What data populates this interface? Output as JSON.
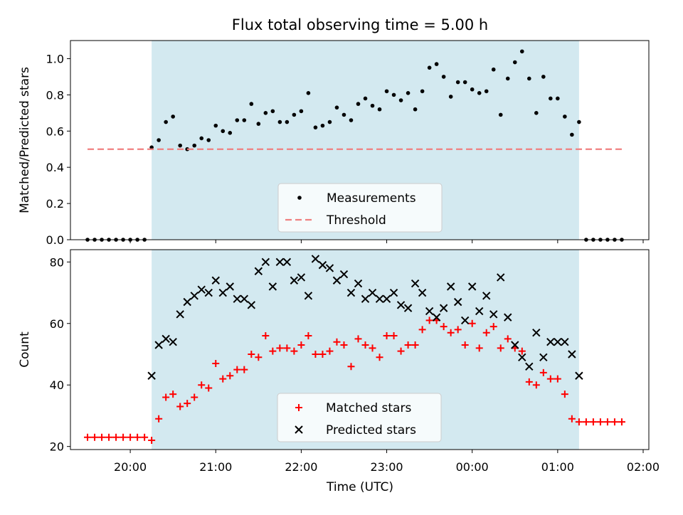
{
  "figure_title": "Flux total observing time = 5.00 h",
  "chart_data": [
    {
      "type": "scatter",
      "panel": "top",
      "ylabel": "Matched/Predicted stars",
      "ylim": [
        0,
        1.1
      ],
      "yticks": [
        0,
        0.2,
        0.4,
        0.6,
        0.8,
        1.0
      ],
      "ytick_labels": [
        "0.0",
        "0.2",
        "0.4",
        "0.6",
        "0.8",
        "1.0"
      ],
      "shaded_region": {
        "start": "20:15",
        "end": "01:15",
        "color": "#d3e9f0"
      },
      "legend": {
        "placement": "lower center",
        "items": [
          "Measurements",
          "Threshold"
        ]
      },
      "series": [
        {
          "name": "Measurements",
          "marker": "dot",
          "color": "#000000",
          "x": [
            "19:30",
            "19:35",
            "19:40",
            "19:45",
            "19:50",
            "19:55",
            "20:00",
            "20:05",
            "20:10",
            "20:15",
            "20:20",
            "20:25",
            "20:30",
            "20:35",
            "20:40",
            "20:45",
            "20:50",
            "20:55",
            "21:00",
            "21:05",
            "21:10",
            "21:15",
            "21:20",
            "21:25",
            "21:30",
            "21:35",
            "21:40",
            "21:45",
            "21:50",
            "21:55",
            "22:00",
            "22:05",
            "22:10",
            "22:15",
            "22:20",
            "22:25",
            "22:30",
            "22:35",
            "22:40",
            "22:45",
            "22:50",
            "22:55",
            "23:00",
            "23:05",
            "23:10",
            "23:15",
            "23:20",
            "23:25",
            "23:30",
            "23:35",
            "23:40",
            "23:45",
            "23:50",
            "23:55",
            "00:00",
            "00:05",
            "00:10",
            "00:15",
            "00:20",
            "00:25",
            "00:30",
            "00:35",
            "00:40",
            "00:45",
            "00:50",
            "00:55",
            "01:00",
            "01:05",
            "01:10",
            "01:15",
            "01:20",
            "01:25",
            "01:30",
            "01:35",
            "01:40",
            "01:45"
          ],
          "y": [
            0,
            0,
            0,
            0,
            0,
            0,
            0,
            0,
            0,
            0.51,
            0.55,
            0.65,
            0.68,
            0.52,
            0.5,
            0.52,
            0.56,
            0.55,
            0.63,
            0.6,
            0.59,
            0.66,
            0.66,
            0.75,
            0.64,
            0.7,
            0.71,
            0.65,
            0.65,
            0.69,
            0.71,
            0.81,
            0.62,
            0.63,
            0.65,
            0.73,
            0.69,
            0.66,
            0.75,
            0.78,
            0.74,
            0.72,
            0.82,
            0.8,
            0.77,
            0.81,
            0.72,
            0.82,
            0.95,
            0.97,
            0.9,
            0.79,
            0.87,
            0.87,
            0.83,
            0.81,
            0.82,
            0.94,
            0.69,
            0.89,
            0.98,
            1.04,
            0.89,
            0.7,
            0.9,
            0.78,
            0.78,
            0.68,
            0.58,
            0.65,
            0,
            0,
            0,
            0,
            0,
            0
          ]
        },
        {
          "name": "Threshold",
          "marker": "dashed-line",
          "color": "#f08080",
          "x": [
            "19:30",
            "01:45"
          ],
          "y": [
            0.5,
            0.5
          ]
        }
      ]
    },
    {
      "type": "scatter",
      "panel": "bottom",
      "xlabel": "Time (UTC)",
      "ylabel": "Count",
      "ylim": [
        19,
        84
      ],
      "yticks": [
        20,
        40,
        60,
        80
      ],
      "ytick_labels": [
        "20",
        "40",
        "60",
        "80"
      ],
      "xticks": [
        "20:00",
        "21:00",
        "22:00",
        "23:00",
        "00:00",
        "01:00",
        "02:00"
      ],
      "shaded_region": {
        "start": "20:15",
        "end": "01:15",
        "color": "#d3e9f0"
      },
      "legend": {
        "placement": "lower center",
        "items": [
          "Matched stars",
          "Predicted stars"
        ]
      },
      "series": [
        {
          "name": "Matched stars",
          "marker": "plus",
          "color": "#ff0000",
          "x": [
            "19:30",
            "19:35",
            "19:40",
            "19:45",
            "19:50",
            "19:55",
            "20:00",
            "20:05",
            "20:10",
            "20:15",
            "20:20",
            "20:25",
            "20:30",
            "20:35",
            "20:40",
            "20:45",
            "20:50",
            "20:55",
            "21:00",
            "21:05",
            "21:10",
            "21:15",
            "21:20",
            "21:25",
            "21:30",
            "21:35",
            "21:40",
            "21:45",
            "21:50",
            "21:55",
            "22:00",
            "22:05",
            "22:10",
            "22:15",
            "22:20",
            "22:25",
            "22:30",
            "22:35",
            "22:40",
            "22:45",
            "22:50",
            "22:55",
            "23:00",
            "23:05",
            "23:10",
            "23:15",
            "23:20",
            "23:25",
            "23:30",
            "23:35",
            "23:40",
            "23:45",
            "23:50",
            "23:55",
            "00:00",
            "00:05",
            "00:10",
            "00:15",
            "00:20",
            "00:25",
            "00:30",
            "00:35",
            "00:40",
            "00:45",
            "00:50",
            "00:55",
            "01:00",
            "01:05",
            "01:10",
            "01:15",
            "01:20",
            "01:25",
            "01:30",
            "01:35",
            "01:40",
            "01:45"
          ],
          "y": [
            23,
            23,
            23,
            23,
            23,
            23,
            23,
            23,
            23,
            22,
            29,
            36,
            37,
            33,
            34,
            36,
            40,
            39,
            47,
            42,
            43,
            45,
            45,
            50,
            49,
            56,
            51,
            52,
            52,
            51,
            53,
            56,
            50,
            50,
            51,
            54,
            53,
            46,
            55,
            53,
            52,
            49,
            56,
            56,
            51,
            53,
            53,
            58,
            61,
            61,
            59,
            57,
            58,
            53,
            60,
            52,
            57,
            59,
            52,
            55,
            52,
            51,
            41,
            40,
            44,
            42,
            42,
            37,
            29,
            28,
            28,
            28,
            28,
            28,
            28,
            28
          ]
        },
        {
          "name": "Predicted stars",
          "marker": "x",
          "color": "#000000",
          "x": [
            "20:15",
            "20:20",
            "20:25",
            "20:30",
            "20:35",
            "20:40",
            "20:45",
            "20:50",
            "20:55",
            "21:00",
            "21:05",
            "21:10",
            "21:15",
            "21:20",
            "21:25",
            "21:30",
            "21:35",
            "21:40",
            "21:45",
            "21:50",
            "21:55",
            "22:00",
            "22:05",
            "22:10",
            "22:15",
            "22:20",
            "22:25",
            "22:30",
            "22:35",
            "22:40",
            "22:45",
            "22:50",
            "22:55",
            "23:00",
            "23:05",
            "23:10",
            "23:15",
            "23:20",
            "23:25",
            "23:30",
            "23:35",
            "23:40",
            "23:45",
            "23:50",
            "23:55",
            "00:00",
            "00:05",
            "00:10",
            "00:15",
            "00:20",
            "00:25",
            "00:30",
            "00:35",
            "00:40",
            "00:45",
            "00:50",
            "00:55",
            "01:00",
            "01:05",
            "01:10",
            "01:15"
          ],
          "y": [
            43,
            53,
            55,
            54,
            63,
            67,
            69,
            71,
            70,
            74,
            70,
            72,
            68,
            68,
            66,
            77,
            80,
            72,
            80,
            80,
            74,
            75,
            69,
            81,
            79,
            78,
            74,
            76,
            70,
            73,
            68,
            70,
            68,
            68,
            70,
            66,
            65,
            73,
            70,
            64,
            62,
            65,
            72,
            67,
            61,
            72,
            64,
            69,
            63,
            75,
            62,
            53,
            49,
            46,
            57,
            49,
            54,
            54,
            54,
            50,
            43
          ]
        }
      ]
    }
  ]
}
